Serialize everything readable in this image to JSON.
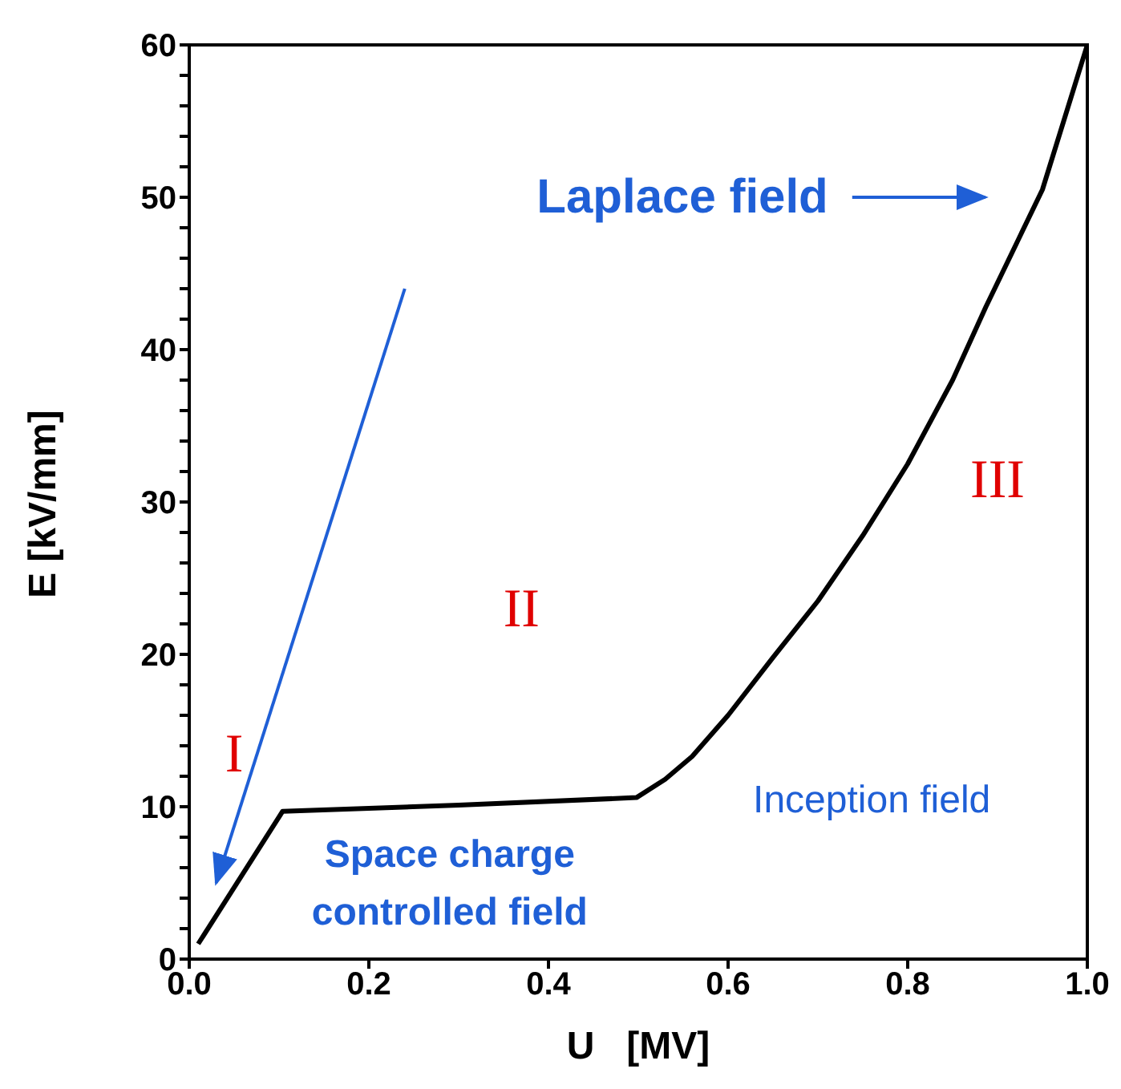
{
  "chart_data": {
    "type": "line",
    "xlabel": "U   [MV]",
    "ylabel": "E [kV/mm]",
    "x": [
      0.01,
      0.104,
      0.3,
      0.498,
      0.53,
      0.56,
      0.6,
      0.65,
      0.7,
      0.75,
      0.8,
      0.85,
      0.887,
      0.95,
      1.0
    ],
    "series": [
      {
        "color": "#000000",
        "values": [
          1,
          9.7,
          10.1,
          10.6,
          11.8,
          13.3,
          16,
          19.8,
          23.5,
          27.8,
          32.5,
          38,
          42.8,
          50.5,
          60
        ]
      }
    ],
    "xlim": [
      0,
      1
    ],
    "ylim": [
      0,
      60
    ],
    "xticks": [
      {
        "value": 0,
        "label": "0.0"
      },
      {
        "value": 0.2,
        "label": "0.2"
      },
      {
        "value": 0.4,
        "label": "0.4"
      },
      {
        "value": 0.6,
        "label": "0.6"
      },
      {
        "value": 0.8,
        "label": "0.8"
      },
      {
        "value": 1,
        "label": "1.0"
      }
    ],
    "yticks": [
      0,
      {
        "value": 2,
        "label": null
      },
      {
        "value": 4,
        "label": null
      },
      {
        "value": 6,
        "label": null
      },
      {
        "value": 8,
        "label": null
      },
      10,
      {
        "value": 12,
        "label": null
      },
      {
        "value": 14,
        "label": null
      },
      {
        "value": 16,
        "label": null
      },
      {
        "value": 18,
        "label": null
      },
      20,
      {
        "value": 22,
        "label": null
      },
      {
        "value": 24,
        "label": null
      },
      {
        "value": 26,
        "label": null
      },
      {
        "value": 28,
        "label": null
      },
      30,
      {
        "value": 32,
        "label": null
      },
      {
        "value": 34,
        "label": null
      },
      {
        "value": 36,
        "label": null
      },
      {
        "value": 38,
        "label": null
      },
      40,
      {
        "value": 42,
        "label": null
      },
      {
        "value": 44,
        "label": null
      },
      {
        "value": 46,
        "label": null
      },
      {
        "value": 48,
        "label": null
      },
      50,
      {
        "value": 52,
        "label": null
      },
      {
        "value": 54,
        "label": null
      },
      {
        "value": 56,
        "label": null
      },
      {
        "value": 58,
        "label": null
      },
      60
    ],
    "grid": false,
    "legend": false,
    "marker": "none",
    "line_style": "solid",
    "annotations": [
      "Laplace field",
      "Inception field",
      "Space charge\ncontrolled field",
      "I",
      "II",
      "III"
    ]
  }
}
